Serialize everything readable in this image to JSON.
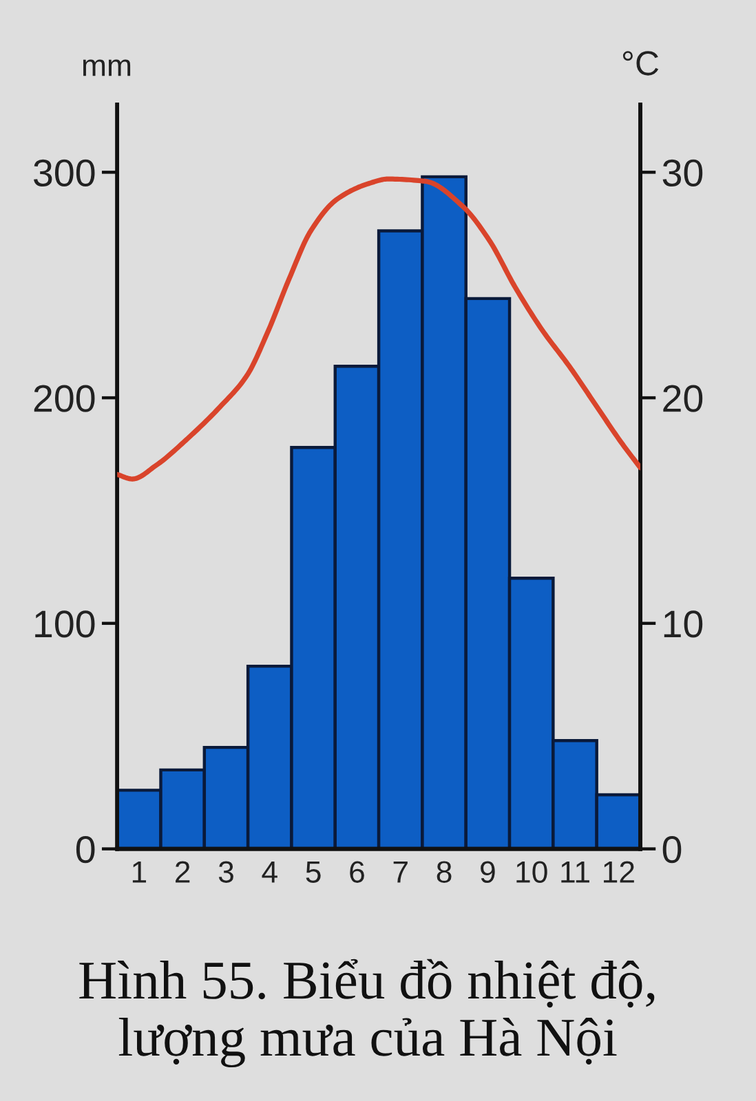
{
  "chart_data": {
    "type": "bar",
    "title": "Hình 55. Biểu đồ nhiệt độ, lượng mưa của Hà Nội",
    "ylabel": "mm",
    "y2label": "°C",
    "x": [
      1,
      2,
      3,
      4,
      5,
      6,
      7,
      8,
      9,
      10,
      11,
      12
    ],
    "xlim": [
      0.5,
      12.5
    ],
    "xticks": [
      1,
      2,
      3,
      4,
      5,
      6,
      7,
      8,
      9,
      10,
      11,
      12
    ],
    "ylim": [
      0,
      330
    ],
    "yticks": [
      0,
      100,
      200,
      300
    ],
    "y2lim": [
      0,
      33
    ],
    "y2ticks": [
      0,
      10,
      20,
      30
    ],
    "series": [
      {
        "color": "#0d5ec4",
        "values": [
          26,
          35,
          45,
          81,
          178,
          214,
          274,
          298,
          244,
          120,
          48,
          24
        ]
      },
      {
        "type": "line",
        "axis": "y2",
        "color": "#d9442b",
        "x": [
          0.5,
          0.85,
          1.39,
          2.12,
          2.86,
          3.48,
          3.95,
          4.45,
          4.94,
          5.54,
          6.27,
          6.71,
          7.57,
          8.42,
          9.03,
          9.63,
          10.25,
          10.87,
          11.47,
          12.07,
          12.5
        ],
        "values": [
          16.6,
          16.4,
          17.0,
          18.2,
          19.6,
          21.0,
          22.9,
          25.3,
          27.4,
          28.8,
          29.5,
          29.7,
          29.6,
          28.5,
          27.0,
          24.9,
          23.0,
          21.4,
          19.7,
          18.0,
          16.9
        ]
      }
    ]
  }
}
